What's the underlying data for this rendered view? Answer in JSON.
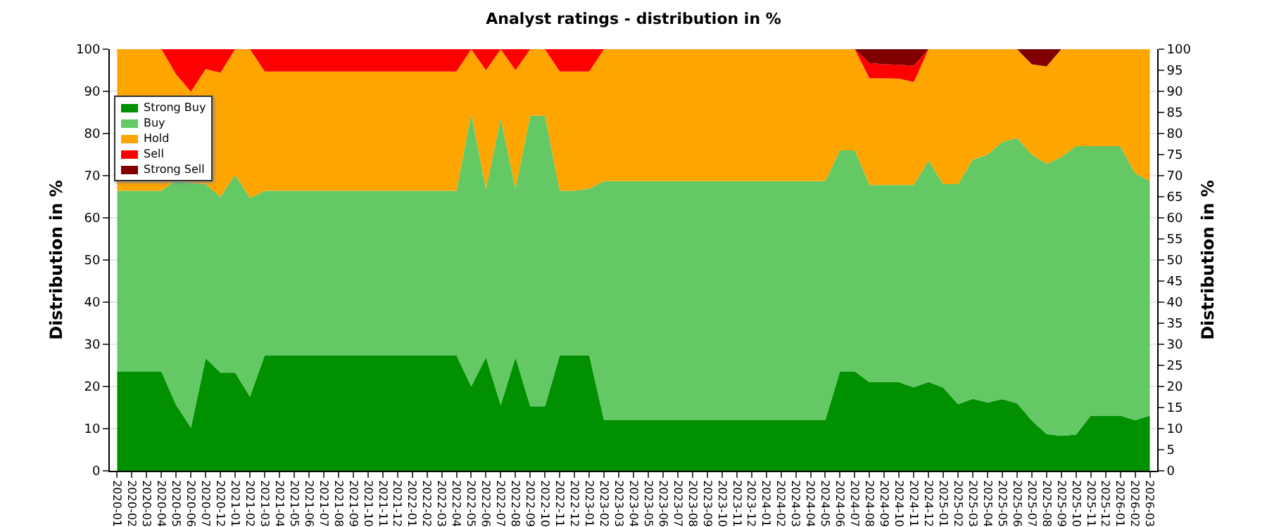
{
  "chart_data": {
    "type": "area",
    "stacked": true,
    "title": "Analyst ratings - distribution in %",
    "ylabel": "Distribution in %",
    "y2label": "Distribution in %",
    "categories": [
      "2020-01",
      "2020-02",
      "2020-03",
      "2020-04",
      "2020-05",
      "2020-06",
      "2020-07",
      "2020-12",
      "2021-01",
      "2021-02",
      "2021-03",
      "2021-04",
      "2021-05",
      "2021-06",
      "2021-07",
      "2021-08",
      "2021-09",
      "2021-10",
      "2021-11",
      "2021-12",
      "2022-01",
      "2022-02",
      "2022-03",
      "2022-04",
      "2022-05",
      "2022-06",
      "2022-07",
      "2022-08",
      "2022-09",
      "2022-10",
      "2022-11",
      "2022-12",
      "2023-01",
      "2023-02",
      "2023-03",
      "2023-04",
      "2023-05",
      "2023-06",
      "2023-07",
      "2023-08",
      "2023-09",
      "2023-10",
      "2023-11",
      "2023-12",
      "2024-01",
      "2024-02",
      "2024-03",
      "2024-04",
      "2024-05",
      "2024-06",
      "2024-07",
      "2024-08",
      "2024-09",
      "2024-10",
      "2024-11",
      "2024-12",
      "2025-01",
      "2025-02",
      "2025-03",
      "2025-04",
      "2025-05",
      "2025-06",
      "2025-07",
      "2025-08",
      "2025-09",
      "2025-10",
      "2025-11",
      "2025-12",
      "2026-01",
      "2026-02",
      "2026-03"
    ],
    "series": [
      {
        "name": "Strong Buy",
        "color": "#009000",
        "values": [
          23.5,
          23.5,
          23.5,
          23.5,
          15.6,
          10.2,
          26.7,
          23.3,
          23.3,
          17.6,
          27.4,
          27.4,
          27.4,
          27.4,
          27.4,
          27.4,
          27.4,
          27.4,
          27.4,
          27.4,
          27.4,
          27.4,
          27.4,
          27.4,
          20,
          26.9,
          15.6,
          26.9,
          15.3,
          15.3,
          27.4,
          27.4,
          27.4,
          12,
          12,
          12,
          12,
          12,
          12,
          12,
          12,
          12,
          12,
          12,
          12,
          12,
          12,
          12,
          12,
          23.6,
          23.6,
          21,
          21,
          21,
          19.8,
          21.1,
          19.7,
          15.8,
          17.1,
          16.2,
          17,
          16,
          11.9,
          8.7,
          8.3,
          8.6,
          13.1,
          13.1,
          13.1,
          12,
          13.1
        ]
      },
      {
        "name": "Buy",
        "color": "#64c864",
        "values": [
          42.9,
          42.9,
          42.9,
          42.9,
          53.3,
          58.1,
          41.3,
          41.7,
          46.9,
          47.1,
          39,
          39,
          39,
          39,
          39,
          39,
          39,
          39,
          39,
          39,
          39,
          39,
          39,
          39,
          64.7,
          40,
          68,
          40,
          68.9,
          68.9,
          39,
          39,
          39.5,
          56.7,
          56.7,
          56.7,
          56.7,
          56.7,
          56.7,
          56.7,
          56.7,
          56.7,
          56.7,
          56.7,
          56.7,
          56.7,
          56.7,
          56.7,
          56.7,
          52.4,
          52.4,
          46.8,
          46.8,
          46.8,
          48,
          52.5,
          48.3,
          52.2,
          56.7,
          58.8,
          61,
          62.9,
          63.1,
          64.1,
          66.1,
          68.4,
          63.9,
          63.9,
          63.9,
          58.6,
          55.6
        ]
      },
      {
        "name": "Hold",
        "color": "#ffa500",
        "values": [
          33.6,
          33.6,
          33.6,
          33.6,
          25.1,
          21.6,
          27.3,
          29.4,
          29.8,
          35.3,
          28.3,
          28.3,
          28.3,
          28.3,
          28.3,
          28.3,
          28.3,
          28.3,
          28.3,
          28.3,
          28.3,
          28.3,
          28.3,
          28.3,
          15.3,
          28.1,
          16.4,
          28.1,
          15.8,
          15.8,
          28.3,
          28.3,
          27.8,
          31.3,
          31.3,
          31.3,
          31.3,
          31.3,
          31.3,
          31.3,
          31.3,
          31.3,
          31.3,
          31.3,
          31.3,
          31.3,
          31.3,
          31.3,
          31.3,
          24,
          24,
          25.3,
          25.3,
          25.2,
          24.4,
          26.4,
          32,
          32,
          26.2,
          25,
          22,
          21.1,
          21.4,
          23.1,
          25.6,
          23,
          23,
          23,
          23,
          29.4,
          31.3
        ]
      },
      {
        "name": "Sell",
        "color": "#ff0000",
        "values": [
          0,
          0,
          0,
          0,
          6,
          10.1,
          4.7,
          5.6,
          0,
          0,
          5.3,
          5.3,
          5.3,
          5.3,
          5.3,
          5.3,
          5.3,
          5.3,
          5.3,
          5.3,
          5.3,
          5.3,
          5.3,
          5.3,
          0,
          5,
          0,
          5,
          0,
          0,
          5.3,
          5.3,
          5.3,
          0,
          0,
          0,
          0,
          0,
          0,
          0,
          0,
          0,
          0,
          0,
          0,
          0,
          0,
          0,
          0,
          0,
          0,
          3.6,
          3.3,
          3.3,
          3.9,
          0,
          0,
          0,
          0,
          0,
          0,
          0,
          0,
          0,
          0,
          0,
          0,
          0,
          0,
          0,
          0
        ]
      },
      {
        "name": "Strong Sell",
        "color": "#800000",
        "values": [
          0,
          0,
          0,
          0,
          0,
          0,
          0,
          0,
          0,
          0,
          0,
          0,
          0,
          0,
          0,
          0,
          0,
          0,
          0,
          0,
          0,
          0,
          0,
          0,
          0,
          0,
          0,
          0,
          0,
          0,
          0,
          0,
          0,
          0,
          0,
          0,
          0,
          0,
          0,
          0,
          0,
          0,
          0,
          0,
          0,
          0,
          0,
          0,
          0,
          0,
          0,
          3.3,
          3.6,
          3.7,
          3.9,
          0,
          0,
          0,
          0,
          0,
          0,
          0,
          3.6,
          4.1,
          0,
          0,
          0,
          0,
          0,
          0,
          0
        ]
      }
    ],
    "ylim": [
      0,
      100
    ],
    "yticks": [
      0,
      10,
      20,
      30,
      40,
      50,
      60,
      70,
      80,
      90,
      100
    ],
    "y2lim": [
      0,
      100
    ],
    "y2ticks": [
      0,
      5,
      10,
      15,
      20,
      25,
      30,
      35,
      40,
      45,
      50,
      55,
      60,
      65,
      70,
      75,
      80,
      85,
      90,
      95,
      100
    ],
    "grid": "y",
    "legend": "top left"
  }
}
